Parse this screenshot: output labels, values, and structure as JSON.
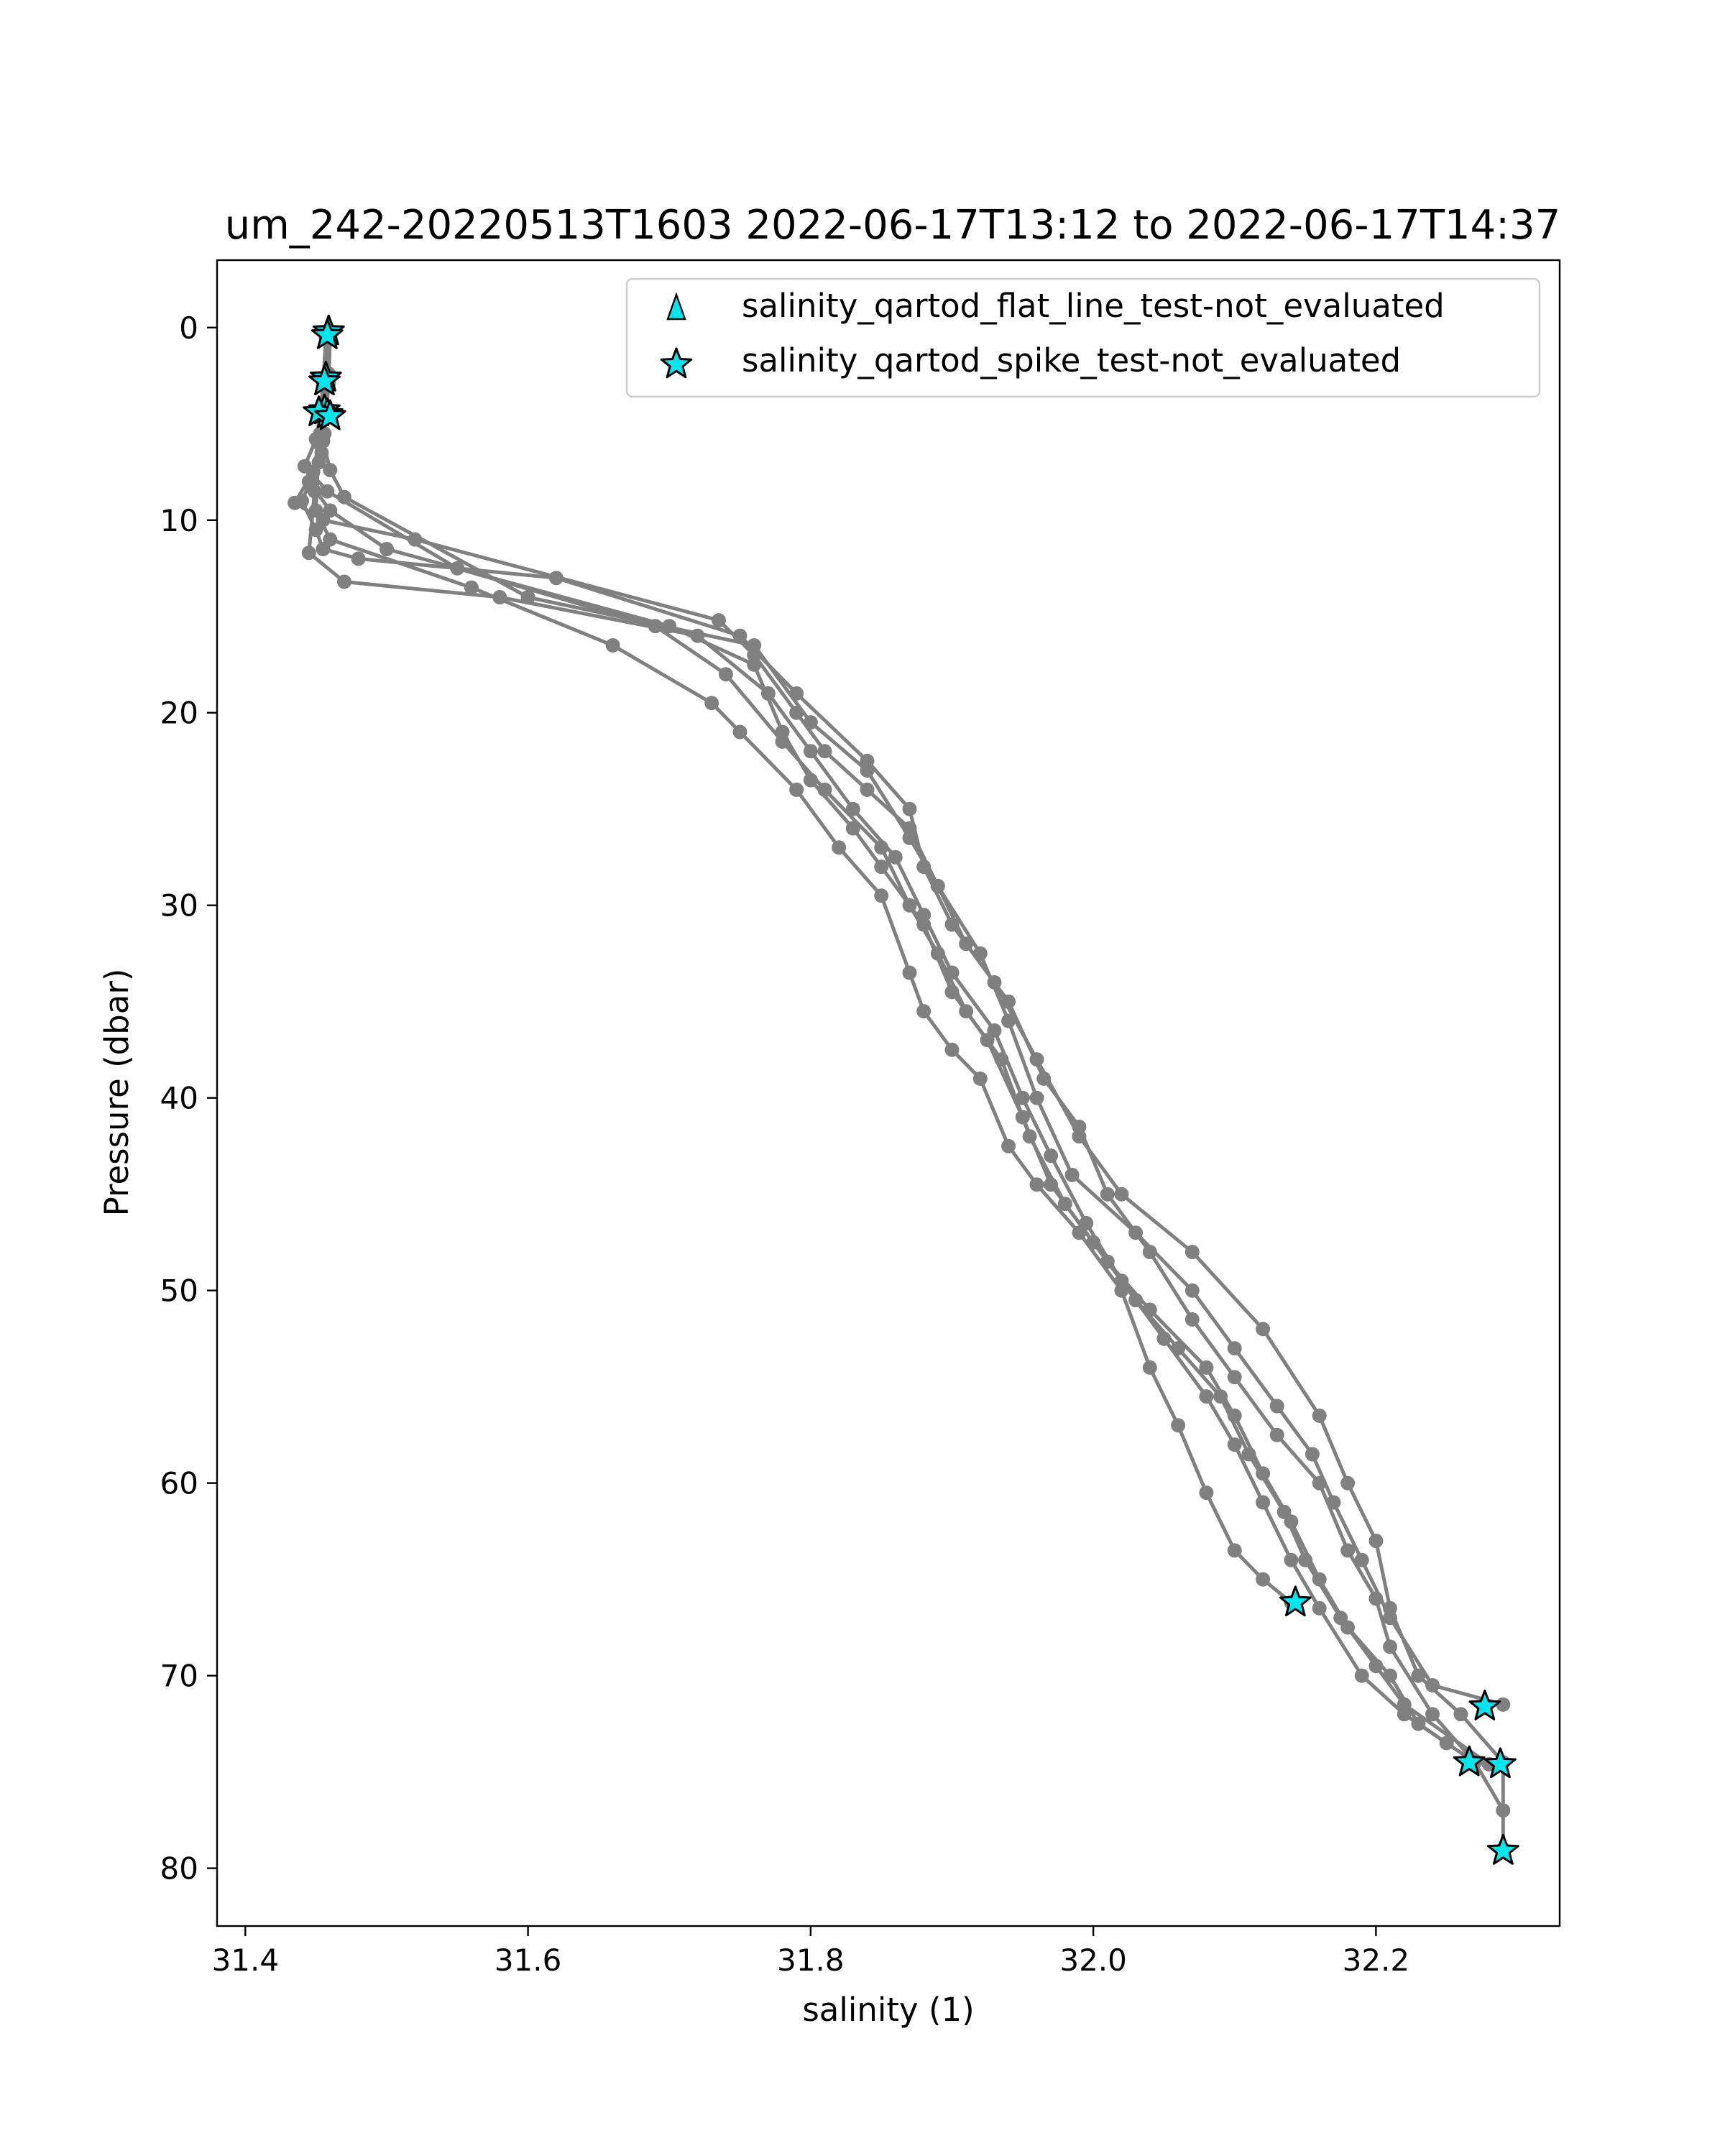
{
  "chart_data": {
    "type": "scatter",
    "title": "um_242-20220513T1603 2022-06-17T13:12 to 2022-06-17T14:37",
    "xlabel": "salinity (1)",
    "ylabel": "Pressure (dbar)",
    "xlim": [
      31.38,
      32.33
    ],
    "ylim": [
      83.0,
      -3.5
    ],
    "y_inverted": true,
    "grid": false,
    "xticks": [
      31.4,
      31.6,
      31.8,
      32.0,
      32.2
    ],
    "xtick_labels": [
      "31.4",
      "31.6",
      "31.8",
      "32.0",
      "32.2"
    ],
    "yticks": [
      0,
      10,
      20,
      30,
      40,
      50,
      60,
      70,
      80
    ],
    "ytick_labels": [
      "0",
      "10",
      "20",
      "30",
      "40",
      "50",
      "60",
      "70",
      "80"
    ],
    "legend_position": "top-right",
    "colors": {
      "profile_line": "#808080",
      "marker_fill": "#00e5ee",
      "marker_edge": "#000000"
    },
    "legend": [
      {
        "label": "salinity_qartod_flat_line_test-not_evaluated",
        "marker": "triangle"
      },
      {
        "label": "salinity_qartod_spike_test-not_evaluated",
        "marker": "star"
      }
    ],
    "profiles": [
      {
        "x": [
          31.459,
          31.458,
          31.457,
          31.456,
          31.452,
          31.44,
          31.45,
          31.455,
          31.48,
          31.62,
          31.75,
          31.79,
          31.84,
          31.87,
          31.88,
          31.9,
          31.93,
          31.96,
          31.99,
          32.02,
          32.07,
          32.12,
          32.16,
          32.18,
          32.2,
          32.21,
          32.23,
          32.26,
          32.29,
          32.29
        ],
        "y": [
          0.2,
          2.5,
          4.3,
          5.5,
          7.0,
          9.0,
          10.5,
          11.5,
          12.0,
          13.0,
          16.0,
          19.0,
          22.5,
          25.0,
          28.0,
          31.0,
          34.0,
          38.0,
          42.0,
          45.0,
          48.0,
          52.0,
          56.5,
          60.0,
          63.0,
          66.5,
          70.0,
          72.0,
          74.5,
          79.0
        ]
      },
      {
        "x": [
          31.458,
          31.457,
          31.455,
          31.452,
          31.448,
          31.435,
          31.455,
          31.52,
          31.735,
          31.76,
          31.79,
          31.81,
          31.84,
          31.87,
          31.89,
          31.92,
          31.94,
          31.96,
          31.985,
          32.03,
          32.07,
          32.1,
          32.13,
          32.155,
          32.17,
          32.19,
          32.21,
          32.24,
          32.29
        ],
        "y": [
          0.3,
          2.7,
          4.4,
          6.0,
          7.5,
          9.1,
          10.0,
          11.0,
          15.2,
          17.0,
          20.0,
          22.0,
          24.0,
          26.0,
          29.0,
          32.5,
          36.0,
          40.0,
          44.0,
          47.0,
          50.0,
          53.0,
          56.0,
          58.5,
          61.0,
          64.0,
          67.0,
          70.5,
          71.5
        ]
      },
      {
        "x": [
          31.46,
          31.459,
          31.457,
          31.454,
          31.445,
          31.46,
          31.5,
          31.7,
          31.76,
          31.78,
          31.8,
          31.83,
          31.85,
          31.88,
          31.9,
          31.925,
          31.95,
          31.97,
          32.0,
          32.03,
          32.06,
          32.09,
          32.11,
          32.135,
          32.15,
          32.175,
          32.2,
          32.22,
          32.28
        ],
        "y": [
          0.4,
          2.9,
          4.7,
          6.5,
          8.0,
          9.5,
          11.5,
          15.5,
          17.5,
          21.0,
          23.5,
          26.0,
          28.0,
          31.0,
          34.5,
          37.0,
          41.0,
          44.5,
          47.5,
          50.5,
          53.0,
          55.5,
          58.5,
          61.5,
          64.0,
          67.0,
          69.5,
          71.5,
          74.6
        ]
      },
      {
        "x": [
          31.457,
          31.455,
          31.453,
          31.45,
          31.442,
          31.458,
          31.55,
          31.69,
          31.74,
          31.78,
          31.81,
          31.85,
          31.87,
          31.89,
          31.91,
          31.935,
          31.955,
          31.98,
          32.01,
          32.04,
          32.08,
          32.1,
          32.12,
          32.14,
          32.16,
          32.18,
          32.21,
          32.23,
          32.27
        ],
        "y": [
          0.5,
          3.0,
          4.5,
          5.8,
          7.2,
          8.5,
          12.5,
          15.5,
          18.0,
          21.5,
          24.0,
          27.0,
          30.0,
          32.5,
          35.5,
          38.0,
          42.0,
          45.5,
          48.5,
          51.0,
          54.0,
          56.5,
          59.5,
          62.0,
          65.0,
          67.5,
          70.0,
          72.5,
          74.5
        ]
      },
      {
        "x": [
          31.459,
          31.458,
          31.456,
          31.453,
          31.449,
          31.445,
          31.47,
          31.58,
          31.72,
          31.77,
          31.8,
          31.83,
          31.86,
          31.88,
          31.9,
          31.93,
          31.95,
          31.97,
          31.995,
          32.02,
          32.05,
          32.08,
          32.1,
          32.12,
          32.14,
          32.16,
          32.19,
          32.22,
          32.25
        ],
        "y": [
          0.2,
          2.6,
          4.2,
          5.5,
          8.5,
          11.7,
          13.2,
          14.0,
          16.0,
          19.0,
          22.0,
          25.0,
          27.5,
          30.5,
          33.5,
          36.5,
          40.0,
          43.0,
          46.5,
          49.5,
          52.5,
          55.5,
          58.0,
          61.0,
          64.0,
          66.5,
          70.0,
          72.0,
          73.5
        ]
      },
      {
        "x": [
          31.458,
          31.456,
          31.454,
          31.452,
          31.45,
          31.46,
          31.56,
          31.66,
          31.73,
          31.75,
          31.79,
          31.82,
          31.85,
          31.87,
          31.88,
          31.9,
          31.92,
          31.94,
          31.96,
          31.99,
          32.02,
          32.04,
          32.06,
          32.08,
          32.1,
          32.12,
          32.14
        ],
        "y": [
          0.3,
          2.8,
          4.6,
          6.0,
          9.5,
          11.0,
          13.5,
          16.5,
          19.5,
          21.0,
          24.0,
          27.0,
          29.5,
          33.5,
          35.5,
          37.5,
          39.0,
          42.5,
          44.5,
          47.0,
          50.0,
          54.0,
          57.0,
          60.5,
          63.5,
          65.0,
          66.2
        ]
      },
      {
        "x": [
          31.46,
          31.459,
          31.457,
          31.455,
          31.46,
          31.47,
          31.6,
          31.76,
          31.8,
          31.84,
          31.87,
          31.89,
          31.91,
          31.94,
          31.965,
          31.99,
          32.01,
          32.04,
          32.07,
          32.1,
          32.13,
          32.16,
          32.18,
          32.2,
          32.21,
          32.24,
          32.27,
          32.29
        ],
        "y": [
          0.4,
          2.4,
          4.4,
          5.9,
          7.4,
          8.8,
          14.0,
          16.5,
          20.5,
          23.0,
          26.5,
          29.0,
          32.0,
          35.0,
          39.0,
          41.5,
          45.0,
          48.0,
          51.5,
          54.5,
          57.5,
          60.0,
          63.5,
          66.0,
          68.5,
          72.0,
          74.5,
          77.0
        ]
      }
    ],
    "flag_markers": [
      {
        "x": 31.459,
        "y": 0.2
      },
      {
        "x": 31.458,
        "y": 0.4
      },
      {
        "x": 31.457,
        "y": 2.6
      },
      {
        "x": 31.456,
        "y": 2.8
      },
      {
        "x": 31.456,
        "y": 4.3
      },
      {
        "x": 31.458,
        "y": 4.5
      },
      {
        "x": 31.452,
        "y": 4.4
      },
      {
        "x": 31.46,
        "y": 4.6
      },
      {
        "x": 32.143,
        "y": 66.2
      },
      {
        "x": 32.277,
        "y": 71.6
      },
      {
        "x": 32.266,
        "y": 74.5
      },
      {
        "x": 32.288,
        "y": 74.6
      },
      {
        "x": 32.29,
        "y": 79.1
      }
    ]
  }
}
